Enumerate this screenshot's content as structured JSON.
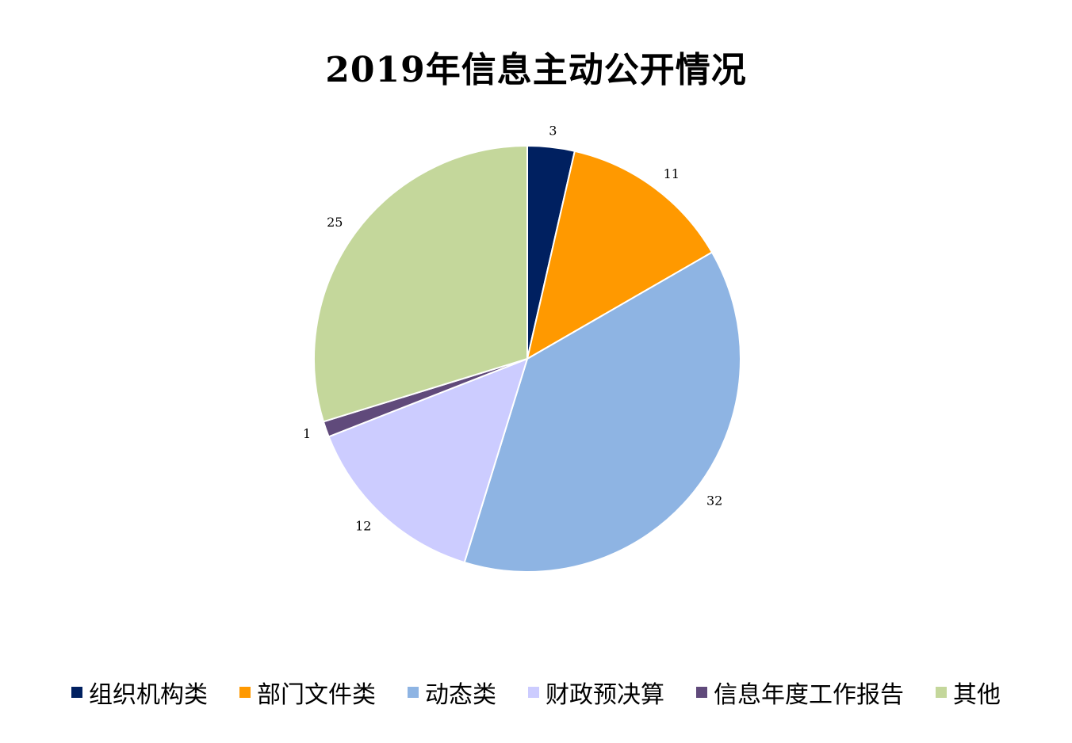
{
  "chart_data": {
    "type": "pie",
    "title": "2019年信息主动公开情况",
    "categories": [
      "组织机构类",
      "部门文件类",
      "动态类",
      "财政预决算",
      "信息年度工作报告",
      "其他"
    ],
    "values": [
      3,
      11,
      32,
      12,
      1,
      25
    ],
    "colors": [
      "#002060",
      "#FF9900",
      "#8EB4E3",
      "#CCCCFF",
      "#604A7B",
      "#C4D79B"
    ],
    "legend": "bottom",
    "data_labels": true
  }
}
